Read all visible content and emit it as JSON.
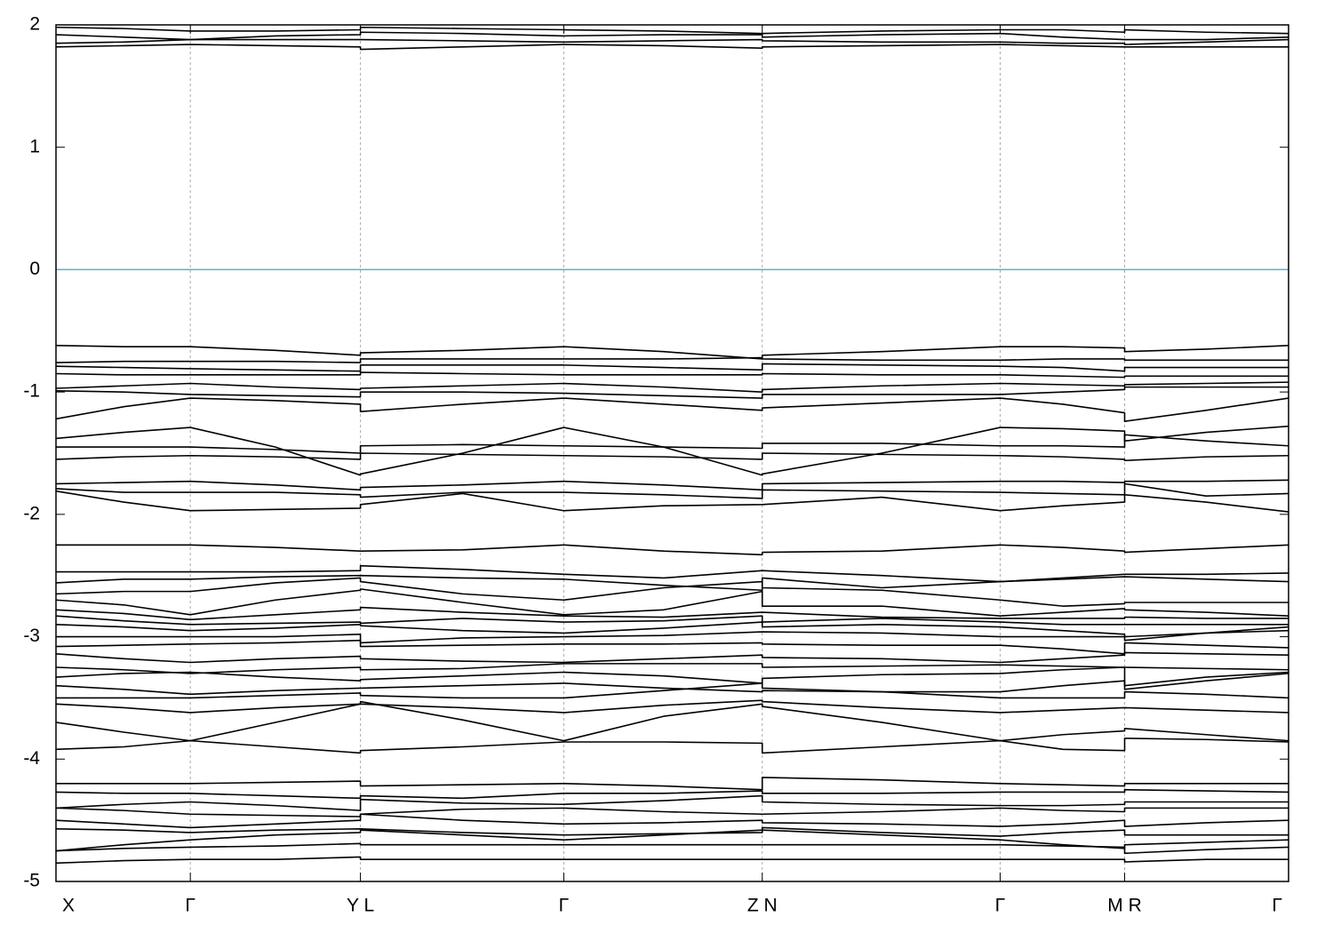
{
  "chart_data": {
    "type": "line",
    "color": "#000000",
    "xlim": [
      0,
      1
    ],
    "xticks": [
      {
        "value": 0,
        "label": "X"
      },
      {
        "value": 0.109,
        "label": "Γ"
      },
      {
        "value": 0.247,
        "label": "Y L"
      },
      {
        "value": 0.412,
        "label": "Γ"
      },
      {
        "value": 0.573,
        "label": "Z N"
      },
      {
        "value": 0.766,
        "label": "Γ"
      },
      {
        "value": 0.867,
        "label": "M R"
      },
      {
        "value": 1,
        "label": "Γ"
      }
    ],
    "xgrid": true,
    "ylim": [
      -5,
      2
    ],
    "yticks": [
      -5,
      -4,
      -3,
      -2,
      -1,
      0,
      1,
      2
    ],
    "reference_line": {
      "y": 0,
      "color": "#56b4c9"
    },
    "x": [
      0,
      0.055,
      0.109,
      0.178,
      0.247,
      0.247,
      0.33,
      0.412,
      0.493,
      0.573,
      0.573,
      0.67,
      0.766,
      0.817,
      0.867,
      0.867,
      0.933,
      1.0
    ],
    "series": [
      {
        "values": [
          1.98,
          1.97,
          1.95,
          1.95,
          1.96,
          1.98,
          1.97,
          1.96,
          1.95,
          1.93,
          1.93,
          1.95,
          1.96,
          1.96,
          1.94,
          1.96,
          1.94,
          1.93
        ]
      },
      {
        "values": [
          1.92,
          1.9,
          1.88,
          1.91,
          1.92,
          1.94,
          1.93,
          1.91,
          1.92,
          1.92,
          1.9,
          1.92,
          1.93,
          1.9,
          1.88,
          1.88,
          1.88,
          1.9
        ]
      },
      {
        "values": [
          1.85,
          1.86,
          1.88,
          1.88,
          1.88,
          1.88,
          1.87,
          1.86,
          1.87,
          1.88,
          1.87,
          1.86,
          1.86,
          1.85,
          1.85,
          1.84,
          1.86,
          1.88
        ]
      },
      {
        "values": [
          1.82,
          1.83,
          1.84,
          1.83,
          1.82,
          1.8,
          1.82,
          1.84,
          1.83,
          1.81,
          1.82,
          1.83,
          1.84,
          1.83,
          1.82,
          1.82,
          1.82,
          1.82
        ]
      },
      {
        "values": [
          -0.62,
          -0.63,
          -0.63,
          -0.66,
          -0.7,
          -0.68,
          -0.66,
          -0.63,
          -0.67,
          -0.73,
          -0.7,
          -0.67,
          -0.63,
          -0.63,
          -0.64,
          -0.67,
          -0.65,
          -0.62
        ]
      },
      {
        "values": [
          -0.76,
          -0.75,
          -0.75,
          -0.75,
          -0.76,
          -0.73,
          -0.73,
          -0.73,
          -0.73,
          -0.72,
          -0.73,
          -0.74,
          -0.74,
          -0.73,
          -0.73,
          -0.74,
          -0.74,
          -0.74
        ]
      },
      {
        "values": [
          -0.79,
          -0.8,
          -0.81,
          -0.82,
          -0.83,
          -0.78,
          -0.78,
          -0.78,
          -0.8,
          -0.82,
          -0.77,
          -0.78,
          -0.79,
          -0.8,
          -0.83,
          -0.8,
          -0.8,
          -0.8
        ]
      },
      {
        "values": [
          -0.85,
          -0.86,
          -0.86,
          -0.86,
          -0.86,
          -0.84,
          -0.85,
          -0.86,
          -0.86,
          -0.86,
          -0.85,
          -0.86,
          -0.86,
          -0.87,
          -0.88,
          -0.87,
          -0.87,
          -0.87
        ]
      },
      {
        "values": [
          -0.97,
          -0.95,
          -0.93,
          -0.96,
          -0.98,
          -0.97,
          -0.95,
          -0.93,
          -0.96,
          -1.0,
          -0.98,
          -0.95,
          -0.93,
          -0.94,
          -0.95,
          -0.94,
          -0.93,
          -0.92
        ]
      },
      {
        "values": [
          -0.99,
          -1.0,
          -1.02,
          -1.03,
          -1.04,
          -1.0,
          -1.0,
          -1.01,
          -1.03,
          -1.05,
          -1.02,
          -1.02,
          -1.02,
          -1.0,
          -0.98,
          -0.96,
          -0.96,
          -0.96
        ]
      },
      {
        "values": [
          -1.22,
          -1.12,
          -1.05,
          -1.07,
          -1.1,
          -1.16,
          -1.1,
          -1.05,
          -1.1,
          -1.15,
          -1.13,
          -1.09,
          -1.05,
          -1.1,
          -1.17,
          -1.24,
          -1.15,
          -1.05
        ]
      },
      {
        "values": [
          -1.38,
          -1.33,
          -1.29,
          -1.45,
          -1.68,
          -1.67,
          -1.5,
          -1.29,
          -1.45,
          -1.68,
          -1.67,
          -1.5,
          -1.29,
          -1.3,
          -1.32,
          -1.4,
          -1.33,
          -1.28
        ]
      },
      {
        "values": [
          -1.45,
          -1.45,
          -1.45,
          -1.47,
          -1.5,
          -1.44,
          -1.43,
          -1.44,
          -1.45,
          -1.46,
          -1.42,
          -1.42,
          -1.44,
          -1.44,
          -1.45,
          -1.35,
          -1.4,
          -1.44
        ]
      },
      {
        "values": [
          -1.55,
          -1.53,
          -1.52,
          -1.53,
          -1.55,
          -1.5,
          -1.51,
          -1.52,
          -1.53,
          -1.55,
          -1.5,
          -1.51,
          -1.52,
          -1.53,
          -1.55,
          -1.56,
          -1.53,
          -1.52
        ]
      },
      {
        "values": [
          -1.75,
          -1.74,
          -1.73,
          -1.76,
          -1.8,
          -1.78,
          -1.76,
          -1.73,
          -1.76,
          -1.8,
          -1.75,
          -1.74,
          -1.73,
          -1.73,
          -1.74,
          -1.73,
          -1.73,
          -1.72
        ]
      },
      {
        "values": [
          -1.79,
          -1.82,
          -1.82,
          -1.82,
          -1.84,
          -1.86,
          -1.82,
          -1.82,
          -1.84,
          -1.87,
          -1.8,
          -1.81,
          -1.82,
          -1.83,
          -1.84,
          -1.75,
          -1.85,
          -1.83
        ]
      },
      {
        "values": [
          -1.81,
          -1.9,
          -1.97,
          -1.96,
          -1.95,
          -1.92,
          -1.83,
          -1.97,
          -1.93,
          -1.92,
          -1.92,
          -1.86,
          -1.97,
          -1.93,
          -1.9,
          -1.84,
          -1.9,
          -1.98
        ]
      },
      {
        "values": [
          -2.25,
          -2.25,
          -2.25,
          -2.27,
          -2.3,
          -2.3,
          -2.29,
          -2.25,
          -2.3,
          -2.33,
          -2.31,
          -2.3,
          -2.25,
          -2.27,
          -2.3,
          -2.31,
          -2.28,
          -2.25
        ]
      },
      {
        "values": [
          -2.47,
          -2.47,
          -2.47,
          -2.47,
          -2.46,
          -2.42,
          -2.45,
          -2.49,
          -2.52,
          -2.46,
          -2.46,
          -2.5,
          -2.55,
          -2.52,
          -2.49,
          -2.49,
          -2.49,
          -2.48
        ]
      },
      {
        "values": [
          -2.56,
          -2.53,
          -2.53,
          -2.51,
          -2.5,
          -2.5,
          -2.52,
          -2.53,
          -2.58,
          -2.62,
          -2.52,
          -2.6,
          -2.55,
          -2.53,
          -2.51,
          -2.51,
          -2.53,
          -2.55
        ]
      },
      {
        "values": [
          -2.65,
          -2.63,
          -2.63,
          -2.56,
          -2.52,
          -2.55,
          -2.65,
          -2.7,
          -2.6,
          -2.55,
          -2.6,
          -2.62,
          -2.7,
          -2.75,
          -2.73,
          -2.72,
          -2.72,
          -2.72
        ]
      },
      {
        "values": [
          -2.7,
          -2.74,
          -2.82,
          -2.7,
          -2.62,
          -2.61,
          -2.72,
          -2.82,
          -2.78,
          -2.63,
          -2.75,
          -2.75,
          -2.83,
          -2.8,
          -2.77,
          -2.78,
          -2.8,
          -2.83
        ]
      },
      {
        "values": [
          -2.78,
          -2.81,
          -2.86,
          -2.82,
          -2.78,
          -2.76,
          -2.8,
          -2.83,
          -2.84,
          -2.8,
          -2.8,
          -2.84,
          -2.85,
          -2.85,
          -2.85,
          -2.84,
          -2.85,
          -2.85
        ]
      },
      {
        "values": [
          -2.83,
          -2.87,
          -2.9,
          -2.89,
          -2.88,
          -2.89,
          -2.85,
          -2.88,
          -2.87,
          -2.83,
          -2.88,
          -2.85,
          -2.88,
          -2.9,
          -2.9,
          -2.9,
          -2.9,
          -2.9
        ]
      },
      {
        "values": [
          -2.9,
          -2.92,
          -2.95,
          -2.93,
          -2.9,
          -2.91,
          -2.95,
          -2.97,
          -2.93,
          -2.88,
          -2.92,
          -2.9,
          -2.92,
          -2.95,
          -2.98,
          -3.03,
          -2.97,
          -2.92
        ]
      },
      {
        "values": [
          -3.0,
          -3.0,
          -3.0,
          -3.0,
          -2.98,
          -3.05,
          -3.01,
          -3.0,
          -2.99,
          -2.96,
          -2.96,
          -2.97,
          -3.0,
          -3.0,
          -3.0,
          -3.0,
          -2.97,
          -2.95
        ]
      },
      {
        "values": [
          -3.08,
          -3.07,
          -3.06,
          -3.05,
          -3.03,
          -3.08,
          -3.07,
          -3.06,
          -3.06,
          -3.05,
          -3.06,
          -3.07,
          -3.07,
          -3.1,
          -3.14,
          -3.05,
          -3.07,
          -3.09
        ]
      },
      {
        "values": [
          -3.14,
          -3.18,
          -3.21,
          -3.18,
          -3.16,
          -3.18,
          -3.2,
          -3.21,
          -3.18,
          -3.15,
          -3.17,
          -3.18,
          -3.21,
          -3.18,
          -3.15,
          -3.13,
          -3.14,
          -3.15
        ]
      },
      {
        "values": [
          -3.25,
          -3.27,
          -3.3,
          -3.27,
          -3.25,
          -3.27,
          -3.26,
          -3.22,
          -3.22,
          -3.22,
          -3.25,
          -3.24,
          -3.23,
          -3.24,
          -3.25,
          -3.25,
          -3.26,
          -3.27
        ]
      },
      {
        "values": [
          -3.33,
          -3.3,
          -3.29,
          -3.33,
          -3.36,
          -3.35,
          -3.32,
          -3.29,
          -3.32,
          -3.38,
          -3.34,
          -3.31,
          -3.3,
          -3.27,
          -3.25,
          -3.4,
          -3.33,
          -3.29
        ]
      },
      {
        "values": [
          -3.4,
          -3.43,
          -3.47,
          -3.44,
          -3.42,
          -3.42,
          -3.4,
          -3.38,
          -3.42,
          -3.45,
          -3.44,
          -3.45,
          -3.45,
          -3.4,
          -3.36,
          -3.43,
          -3.36,
          -3.3
        ]
      },
      {
        "values": [
          -3.5,
          -3.5,
          -3.5,
          -3.48,
          -3.46,
          -3.48,
          -3.5,
          -3.5,
          -3.44,
          -3.38,
          -3.42,
          -3.45,
          -3.5,
          -3.5,
          -3.5,
          -3.45,
          -3.47,
          -3.5
        ]
      },
      {
        "values": [
          -3.55,
          -3.58,
          -3.62,
          -3.58,
          -3.55,
          -3.55,
          -3.58,
          -3.62,
          -3.56,
          -3.52,
          -3.53,
          -3.58,
          -3.62,
          -3.6,
          -3.58,
          -3.58,
          -3.6,
          -3.62
        ]
      },
      {
        "values": [
          -3.7,
          -3.78,
          -3.85,
          -3.7,
          -3.55,
          -3.53,
          -3.68,
          -3.85,
          -3.65,
          -3.55,
          -3.57,
          -3.7,
          -3.85,
          -3.8,
          -3.77,
          -3.75,
          -3.8,
          -3.85
        ]
      },
      {
        "values": [
          -3.92,
          -3.9,
          -3.85,
          -3.9,
          -3.95,
          -3.93,
          -3.9,
          -3.86,
          -3.86,
          -3.87,
          -3.95,
          -3.9,
          -3.85,
          -3.92,
          -3.93,
          -3.83,
          -3.84,
          -3.86
        ]
      },
      {
        "values": [
          -4.2,
          -4.2,
          -4.2,
          -4.19,
          -4.18,
          -4.22,
          -4.21,
          -4.2,
          -4.22,
          -4.25,
          -4.15,
          -4.17,
          -4.2,
          -4.21,
          -4.22,
          -4.2,
          -4.2,
          -4.2
        ]
      },
      {
        "values": [
          -4.27,
          -4.28,
          -4.28,
          -4.3,
          -4.32,
          -4.3,
          -4.32,
          -4.28,
          -4.28,
          -4.26,
          -4.28,
          -4.28,
          -4.27,
          -4.27,
          -4.27,
          -4.25,
          -4.26,
          -4.27
        ]
      },
      {
        "values": [
          -4.4,
          -4.37,
          -4.35,
          -4.38,
          -4.42,
          -4.33,
          -4.36,
          -4.37,
          -4.34,
          -4.3,
          -4.35,
          -4.37,
          -4.38,
          -4.38,
          -4.37,
          -4.35,
          -4.35,
          -4.35
        ]
      },
      {
        "values": [
          -4.4,
          -4.42,
          -4.45,
          -4.46,
          -4.47,
          -4.45,
          -4.41,
          -4.4,
          -4.43,
          -4.45,
          -4.45,
          -4.43,
          -4.4,
          -4.42,
          -4.43,
          -4.4,
          -4.4,
          -4.4
        ]
      },
      {
        "values": [
          -4.5,
          -4.53,
          -4.56,
          -4.53,
          -4.5,
          -4.45,
          -4.5,
          -4.53,
          -4.52,
          -4.5,
          -4.52,
          -4.53,
          -4.55,
          -4.53,
          -4.5,
          -4.55,
          -4.52,
          -4.5
        ]
      },
      {
        "values": [
          -4.57,
          -4.58,
          -4.6,
          -4.58,
          -4.57,
          -4.57,
          -4.6,
          -4.62,
          -4.61,
          -4.6,
          -4.56,
          -4.6,
          -4.63,
          -4.6,
          -4.58,
          -4.62,
          -4.62,
          -4.62
        ]
      },
      {
        "values": [
          -4.75,
          -4.7,
          -4.66,
          -4.62,
          -4.6,
          -4.58,
          -4.62,
          -4.66,
          -4.62,
          -4.58,
          -4.58,
          -4.62,
          -4.66,
          -4.7,
          -4.73,
          -4.7,
          -4.68,
          -4.66
        ]
      },
      {
        "values": [
          -4.75,
          -4.73,
          -4.72,
          -4.71,
          -4.69,
          -4.7,
          -4.7,
          -4.7,
          -4.7,
          -4.7,
          -4.7,
          -4.7,
          -4.7,
          -4.71,
          -4.72,
          -4.77,
          -4.74,
          -4.72
        ]
      },
      {
        "values": [
          -4.85,
          -4.83,
          -4.82,
          -4.82,
          -4.8,
          -4.82,
          -4.82,
          -4.82,
          -4.82,
          -4.82,
          -4.82,
          -4.82,
          -4.82,
          -4.82,
          -4.82,
          -4.84,
          -4.82,
          -4.82
        ]
      }
    ]
  }
}
